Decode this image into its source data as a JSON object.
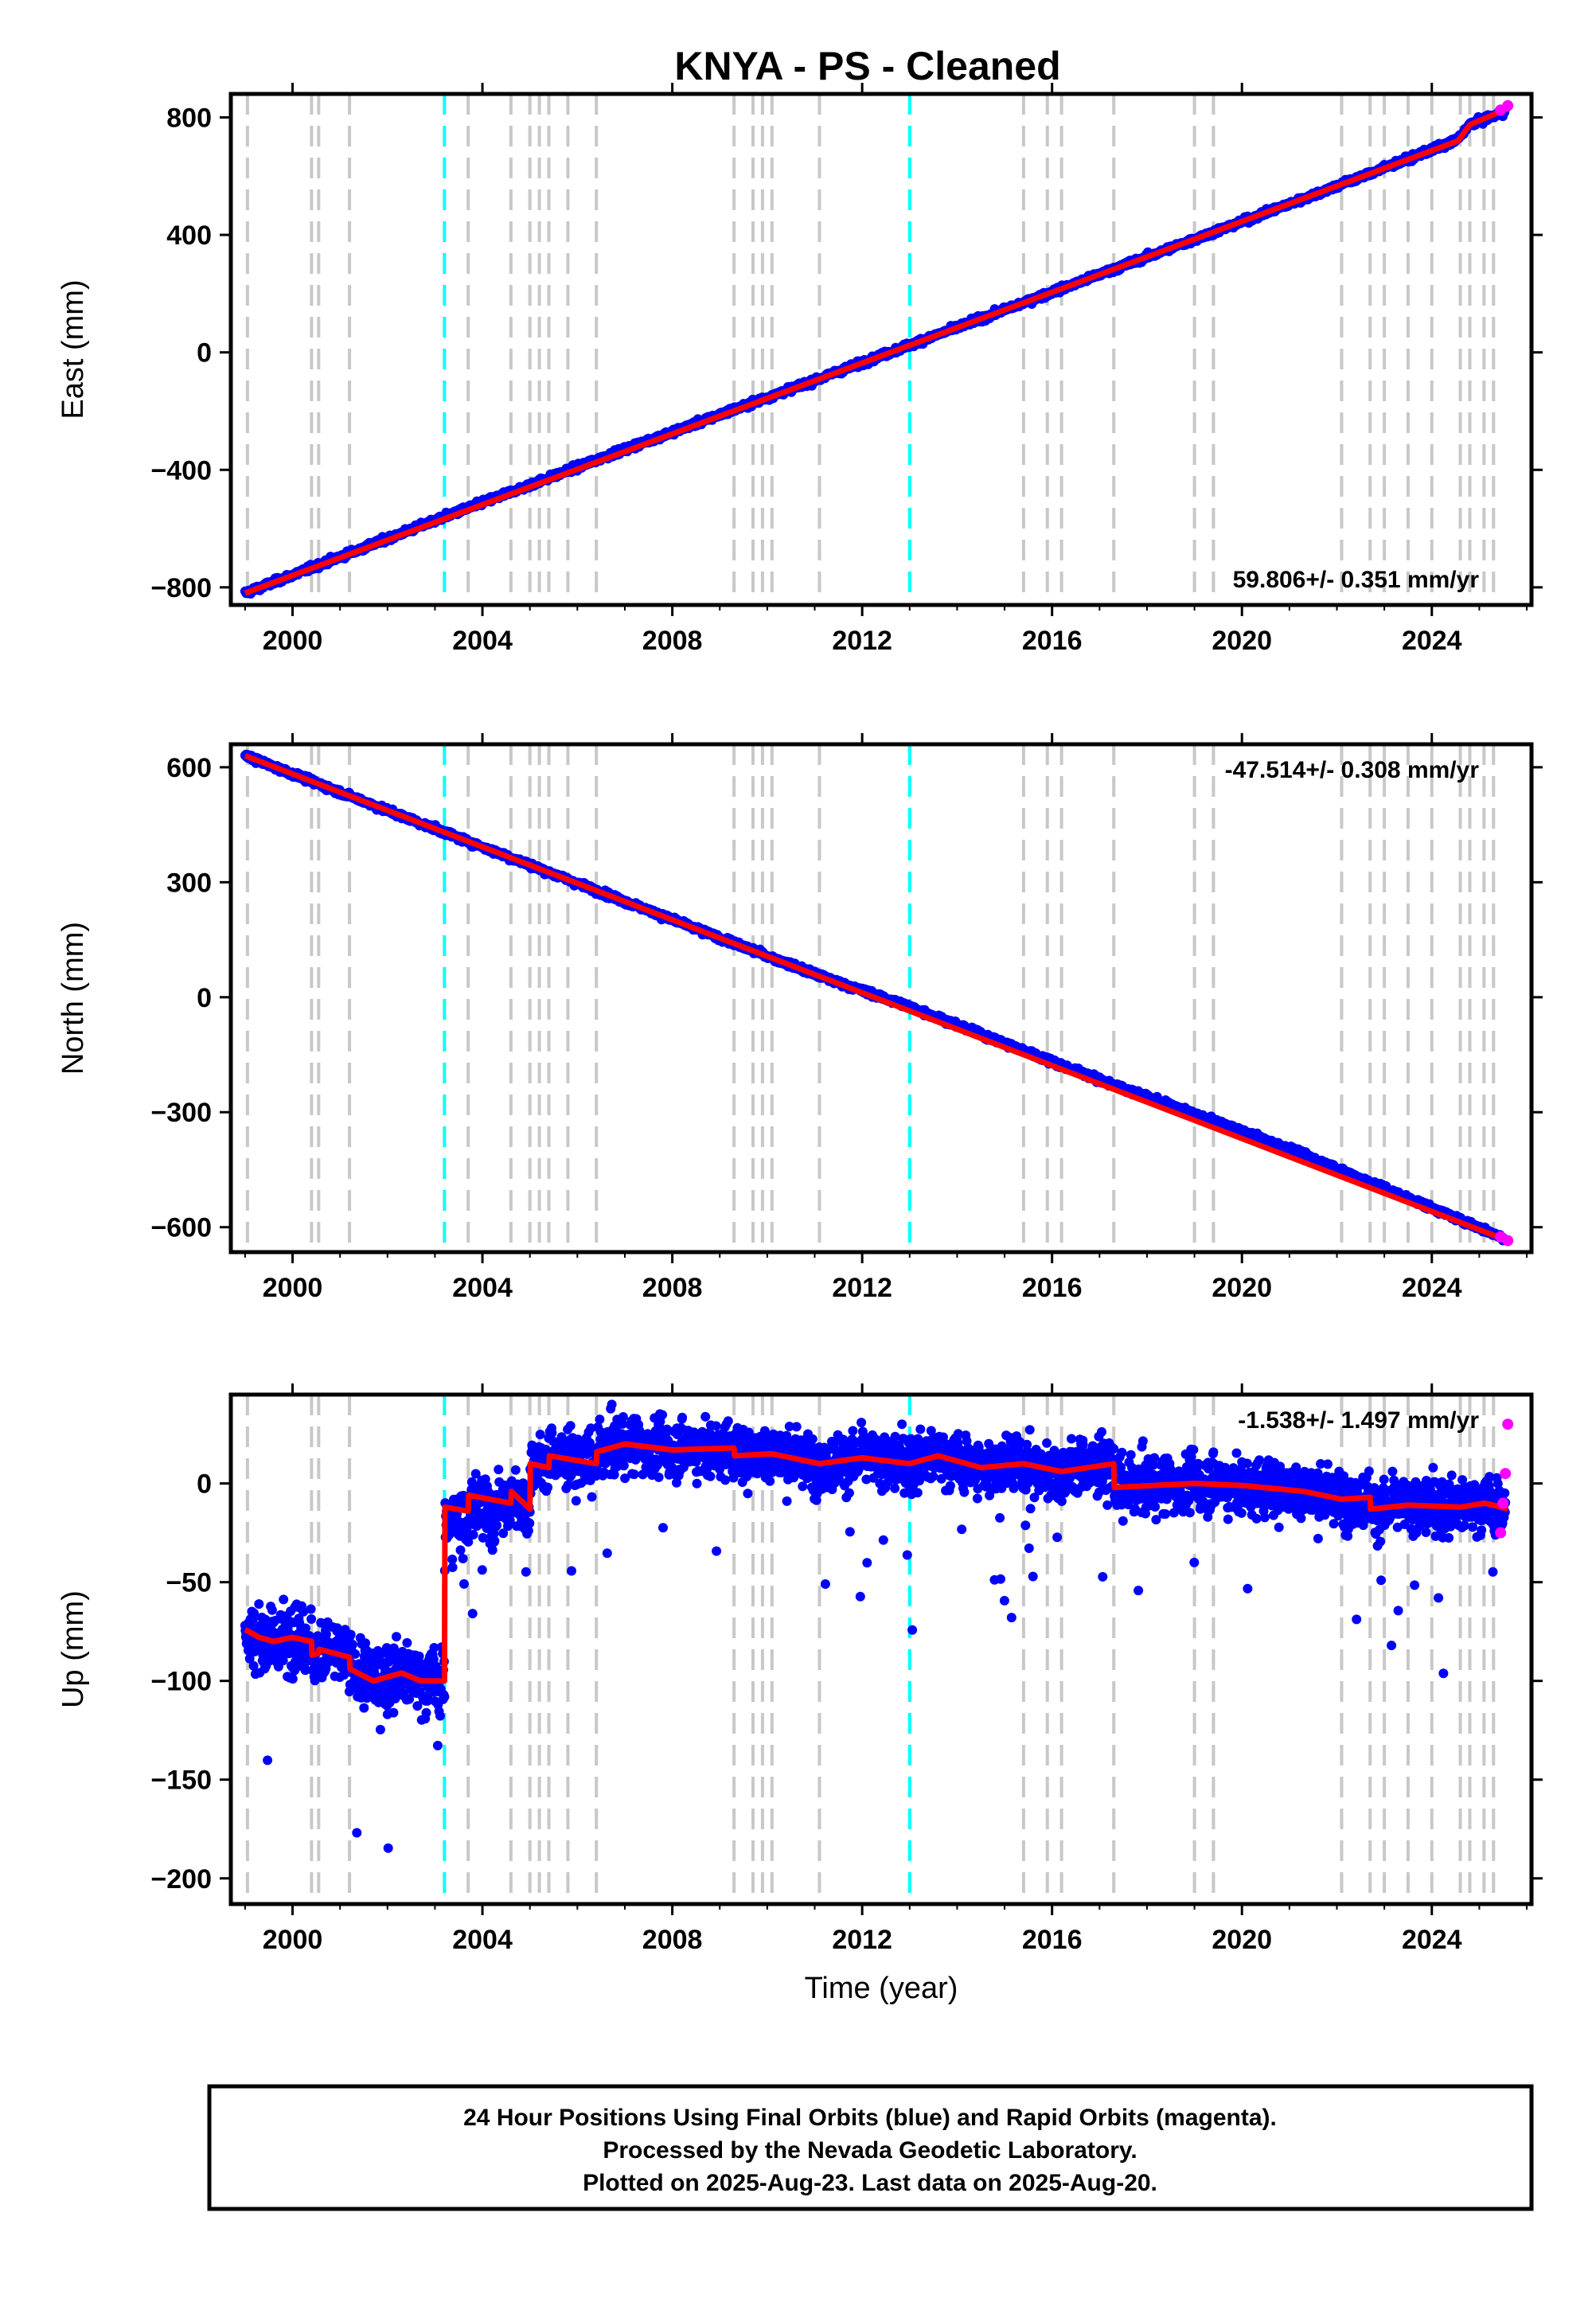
{
  "title": "KNYA  - PS - Cleaned",
  "colors": {
    "final_orbits": "#0000ff",
    "rapid_orbits": "#ff00ff",
    "model": "#ff0000",
    "equipment_change": "#c8c8c8",
    "earthquake": "#00ffff",
    "frame": "#000000"
  },
  "footnote": {
    "line1": "24 Hour Positions Using Final Orbits (blue) and Rapid Orbits (magenta).",
    "line2": "Processed by the Nevada Geodetic Laboratory.",
    "line3": "Plotted on 2025-Aug-23. Last data on 2025-Aug-20."
  },
  "chart_data": [
    {
      "type": "scatter",
      "component": "east",
      "ylabel": "East (mm)",
      "xlabel": "",
      "xlim": [
        1998.7,
        2026.1
      ],
      "ylim": [
        -860,
        880
      ],
      "xticks": [
        2000,
        2004,
        2008,
        2012,
        2016,
        2020,
        2024
      ],
      "yticks": [
        -800,
        -400,
        0,
        400,
        800
      ],
      "rate_label": "59.806+/- 0.351 mm/yr",
      "rate_position": "bottom-right",
      "series": [
        {
          "kind": "final_orbits",
          "x": [
            1999.0,
            2003.2,
            2007.0,
            2011.0,
            2013.0,
            2017.0,
            2021.0,
            2024.5,
            2024.8,
            2025.55
          ],
          "y": [
            -820,
            -560,
            -330,
            -95,
            25,
            265,
            505,
            720,
            775,
            820
          ]
        },
        {
          "kind": "model",
          "x": [
            1999.0,
            2024.55,
            2024.8,
            2025.6
          ],
          "y": [
            -820,
            720,
            775,
            830
          ]
        },
        {
          "kind": "rapid_orbits",
          "x": [
            2025.45,
            2025.6
          ],
          "y": [
            825,
            840
          ]
        }
      ],
      "vlines_equipment": [
        1999.05,
        2000.4,
        2000.55,
        2001.2,
        2003.7,
        2004.6,
        2005.0,
        2005.2,
        2005.4,
        2005.8,
        2006.4,
        2009.3,
        2009.7,
        2009.9,
        2010.1,
        2011.1,
        2015.4,
        2015.9,
        2016.2,
        2017.3,
        2019.0,
        2019.4,
        2022.1,
        2022.7,
        2023.0,
        2023.5,
        2024.0,
        2024.6,
        2024.8,
        2025.1,
        2025.3
      ],
      "vlines_earthquake": [
        2003.2,
        2013.0
      ]
    },
    {
      "type": "scatter",
      "component": "north",
      "ylabel": "North (mm)",
      "xlabel": "",
      "xlim": [
        1998.7,
        2026.1
      ],
      "ylim": [
        -665,
        660
      ],
      "xticks": [
        2000,
        2004,
        2008,
        2012,
        2016,
        2020,
        2024
      ],
      "yticks": [
        -600,
        -300,
        0,
        300,
        600
      ],
      "rate_label": "-47.514+/- 0.308 mm/yr",
      "rate_position": "top-right",
      "series": [
        {
          "kind": "final_orbits",
          "x": [
            1999.0,
            2003.2,
            2007.0,
            2011.0,
            2013.0,
            2017.0,
            2021.0,
            2025.55
          ],
          "y": [
            630,
            430,
            250,
            60,
            -25,
            -215,
            -395,
            -630
          ]
        },
        {
          "kind": "model",
          "x": [
            1999.0,
            2025.6
          ],
          "y": [
            630,
            -635
          ]
        },
        {
          "kind": "rapid_orbits",
          "x": [
            2025.45,
            2025.6
          ],
          "y": [
            -625,
            -635
          ]
        }
      ],
      "vlines_equipment": [
        1999.05,
        2000.4,
        2000.55,
        2001.2,
        2003.7,
        2004.6,
        2005.0,
        2005.2,
        2005.4,
        2005.8,
        2006.4,
        2009.3,
        2009.7,
        2009.9,
        2010.1,
        2011.1,
        2015.4,
        2015.9,
        2016.2,
        2017.3,
        2019.0,
        2019.4,
        2022.1,
        2022.7,
        2023.0,
        2023.5,
        2024.0,
        2024.6,
        2024.8,
        2025.1,
        2025.3
      ],
      "vlines_earthquake": [
        2003.2,
        2013.0
      ]
    },
    {
      "type": "scatter",
      "component": "up",
      "ylabel": "Up (mm)",
      "xlabel": "Time (year)",
      "xlim": [
        1998.7,
        2026.1
      ],
      "ylim": [
        -213,
        45
      ],
      "xticks": [
        2000,
        2004,
        2008,
        2012,
        2016,
        2020,
        2024
      ],
      "yticks": [
        -200,
        -150,
        -100,
        -50,
        0
      ],
      "rate_label": "-1.538+/- 1.497 mm/yr",
      "rate_position": "top-right",
      "series": [
        {
          "kind": "final_orbits",
          "scatter_sd": [
            [
              1999.0,
              2003.2,
              12
            ],
            [
              2003.2,
              2026.0,
              10
            ]
          ]
        },
        {
          "kind": "model",
          "x": [
            1999.0,
            1999.3,
            1999.6,
            2000.0,
            2000.4,
            2000.41,
            2000.55,
            2000.56,
            2001.2,
            2001.21,
            2001.7,
            2002.3,
            2002.7,
            2003.2,
            2003.21,
            2003.7,
            2003.71,
            2004.6,
            2004.61,
            2005.0,
            2005.01,
            2005.4,
            2005.41,
            2006.4,
            2006.41,
            2007.0,
            2008.0,
            2009.3,
            2009.31,
            2010.1,
            2011.1,
            2012.0,
            2013.0,
            2013.6,
            2014.5,
            2015.4,
            2016.2,
            2017.3,
            2017.31,
            2019.0,
            2020.0,
            2021.3,
            2022.1,
            2022.7,
            2022.71,
            2023.5,
            2024.6,
            2025.1,
            2025.3,
            2025.6
          ],
          "y": [
            -74,
            -78,
            -80,
            -78,
            -80,
            -87,
            -86,
            -84,
            -88,
            -94,
            -100,
            -96,
            -100,
            -100,
            -12,
            -14,
            -6,
            -10,
            -4,
            -13,
            10,
            8,
            14,
            10,
            16,
            20,
            17,
            18,
            14,
            15,
            10,
            13,
            10,
            14,
            8,
            10,
            6,
            10,
            -2,
            0,
            -1,
            -4,
            -8,
            -7,
            -13,
            -11,
            -12,
            -10,
            -11,
            -13
          ]
        },
        {
          "kind": "rapid_orbits",
          "x": [
            2025.45,
            2025.5,
            2025.55,
            2025.6
          ],
          "y": [
            -25,
            -10,
            5,
            30
          ]
        }
      ],
      "vlines_equipment": [
        1999.05,
        2000.4,
        2000.55,
        2001.2,
        2003.7,
        2004.6,
        2005.0,
        2005.2,
        2005.4,
        2005.8,
        2006.4,
        2009.3,
        2009.7,
        2009.9,
        2010.1,
        2011.1,
        2015.4,
        2015.9,
        2016.2,
        2017.3,
        2019.0,
        2019.4,
        2022.1,
        2022.7,
        2023.0,
        2023.5,
        2024.0,
        2024.6,
        2024.8,
        2025.1,
        2025.3
      ],
      "vlines_earthquake": [
        2003.2,
        2013.0
      ]
    }
  ]
}
